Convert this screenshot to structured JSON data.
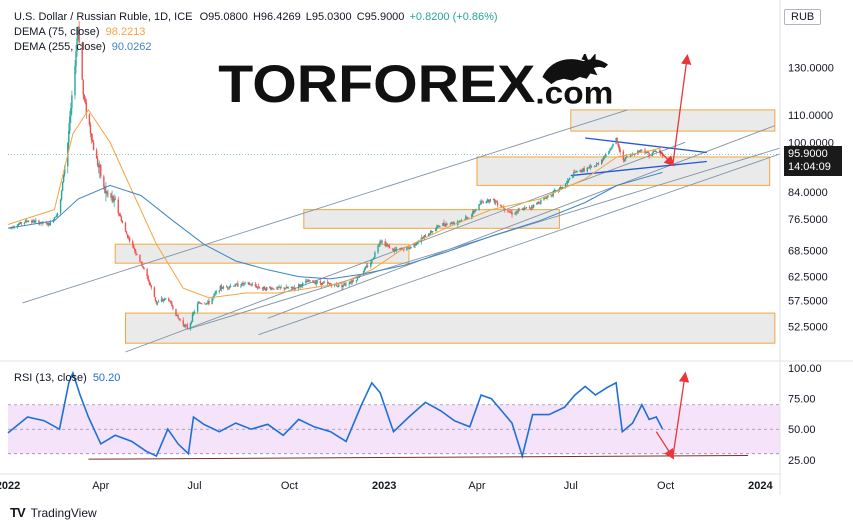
{
  "header": {
    "symbol": "U.S. Dollar / Russian Ruble, 1D, ICE",
    "open_label": "O",
    "open": "95.0800",
    "high_label": "H",
    "high": "96.4269",
    "low_label": "L",
    "low": "95.0300",
    "close_label": "C",
    "close": "95.9000",
    "change": "+0.8200 (+0.86%)",
    "dema75_label": "DEMA (75, close)",
    "dema75_value": "98.2213",
    "dema255_label": "DEMA (255, close)",
    "dema255_value": "90.0262",
    "currency": "RUB"
  },
  "watermark": {
    "brand_a": "TORFOREX",
    "brand_b": ".com"
  },
  "price_badge": {
    "price": "95.9000",
    "countdown": "14:04:09"
  },
  "rsi_label": "RSI (13, close)",
  "rsi_value": "50.20",
  "footer": {
    "brand": "TradingView"
  },
  "colors": {
    "up": "#26a69a",
    "down": "#ef5350",
    "dema75": "#f5a442",
    "dema255": "#3d85c6",
    "rsi": "#1e6fd9",
    "rsi_band": "#efd7f7",
    "zone_fill": "#e6e6e6",
    "zone_border": "#f0a63a",
    "arrow": "#e8363a",
    "trend_blue": "#2457d6"
  },
  "chart_data": [
    {
      "type": "candlestick",
      "title": "U.S. Dollar / Russian Ruble, 1D, ICE",
      "ylim": [
        47,
        160
      ],
      "y_scale": "log",
      "y_ticks": [
        "130.0000",
        "110.0000",
        "100.0000",
        "84.0000",
        "76.5000",
        "68.5000",
        "62.5000",
        "57.5000",
        "52.5000"
      ],
      "x_ticks": [
        "2022",
        "Apr",
        "Jul",
        "Oct",
        "2023",
        "Apr",
        "Jul",
        "Oct",
        "2024"
      ],
      "x_range": [
        "2022-01-01",
        "2024-01-20"
      ],
      "last_price": 95.9,
      "series": [
        {
          "name": "DEMA (75, close)",
          "color": "#f5a442",
          "points": [
            [
              "2022-01-01",
              75
            ],
            [
              "2022-02-15",
              79
            ],
            [
              "2022-03-05",
              103
            ],
            [
              "2022-03-20",
              112
            ],
            [
              "2022-04-10",
              100
            ],
            [
              "2022-05-05",
              82
            ],
            [
              "2022-05-25",
              70
            ],
            [
              "2022-06-20",
              60
            ],
            [
              "2022-07-15",
              58
            ],
            [
              "2022-08-20",
              59
            ],
            [
              "2022-09-20",
              59
            ],
            [
              "2022-10-20",
              60
            ],
            [
              "2022-11-20",
              61
            ],
            [
              "2022-12-20",
              64
            ],
            [
              "2023-01-20",
              69
            ],
            [
              "2023-03-01",
              74
            ],
            [
              "2023-04-15",
              79
            ],
            [
              "2023-06-01",
              82
            ],
            [
              "2023-07-15",
              88
            ],
            [
              "2023-08-15",
              95
            ],
            [
              "2023-09-15",
              97
            ],
            [
              "2023-09-28",
              98.2
            ]
          ]
        },
        {
          "name": "DEMA (255, close)",
          "color": "#3d85c6",
          "points": [
            [
              "2022-01-01",
              74
            ],
            [
              "2022-02-15",
              76
            ],
            [
              "2022-03-10",
              82
            ],
            [
              "2022-04-10",
              86
            ],
            [
              "2022-05-10",
              83
            ],
            [
              "2022-06-10",
              76
            ],
            [
              "2022-07-10",
              70
            ],
            [
              "2022-08-10",
              66
            ],
            [
              "2022-09-10",
              64
            ],
            [
              "2022-10-10",
              62.5
            ],
            [
              "2022-11-10",
              62
            ],
            [
              "2022-12-10",
              63
            ],
            [
              "2023-01-20",
              65
            ],
            [
              "2023-03-01",
              68
            ],
            [
              "2023-04-15",
              72
            ],
            [
              "2023-06-01",
              76
            ],
            [
              "2023-07-15",
              81
            ],
            [
              "2023-08-15",
              86
            ],
            [
              "2023-09-28",
              90
            ]
          ]
        },
        {
          "name": "Close",
          "color": "#26a69a",
          "points": [
            [
              "2022-01-01",
              74
            ],
            [
              "2022-01-20",
              76
            ],
            [
              "2022-02-10",
              75
            ],
            [
              "2022-02-20",
              79
            ],
            [
              "2022-02-28",
              100
            ],
            [
              "2022-03-05",
              120
            ],
            [
              "2022-03-10",
              150
            ],
            [
              "2022-03-15",
              118
            ],
            [
              "2022-03-25",
              98
            ],
            [
              "2022-04-05",
              84
            ],
            [
              "2022-04-15",
              81
            ],
            [
              "2022-04-25",
              73
            ],
            [
              "2022-05-05",
              68
            ],
            [
              "2022-05-15",
              63
            ],
            [
              "2022-05-25",
              57
            ],
            [
              "2022-06-05",
              58
            ],
            [
              "2022-06-15",
              54
            ],
            [
              "2022-06-25",
              52
            ],
            [
              "2022-06-30",
              55
            ],
            [
              "2022-07-05",
              57
            ],
            [
              "2022-07-15",
              57
            ],
            [
              "2022-07-25",
              60
            ],
            [
              "2022-08-05",
              60.5
            ],
            [
              "2022-08-20",
              61
            ],
            [
              "2022-09-05",
              60
            ],
            [
              "2022-09-20",
              60
            ],
            [
              "2022-10-05",
              60
            ],
            [
              "2022-10-20",
              61.5
            ],
            [
              "2022-11-05",
              61
            ],
            [
              "2022-11-20",
              60.5
            ],
            [
              "2022-12-05",
              62
            ],
            [
              "2022-12-20",
              66
            ],
            [
              "2022-12-28",
              71
            ],
            [
              "2023-01-10",
              68.5
            ],
            [
              "2023-01-25",
              69
            ],
            [
              "2023-02-10",
              72
            ],
            [
              "2023-02-25",
              75
            ],
            [
              "2023-03-10",
              75.5
            ],
            [
              "2023-03-25",
              77
            ],
            [
              "2023-04-05",
              81
            ],
            [
              "2023-04-15",
              82
            ],
            [
              "2023-04-25",
              80
            ],
            [
              "2023-05-05",
              78
            ],
            [
              "2023-05-15",
              79
            ],
            [
              "2023-05-25",
              80
            ],
            [
              "2023-06-10",
              83
            ],
            [
              "2023-06-25",
              86
            ],
            [
              "2023-07-05",
              90
            ],
            [
              "2023-07-15",
              91
            ],
            [
              "2023-07-25",
              92
            ],
            [
              "2023-08-05",
              96
            ],
            [
              "2023-08-14",
              101
            ],
            [
              "2023-08-20",
              94
            ],
            [
              "2023-08-30",
              96
            ],
            [
              "2023-09-08",
              97.5
            ],
            [
              "2023-09-15",
              96
            ],
            [
              "2023-09-22",
              97
            ],
            [
              "2023-09-28",
              95.9
            ]
          ]
        }
      ],
      "zones": [
        {
          "from": "2023-07-01",
          "to": "2024-01-15",
          "low": 104,
          "high": 112
        },
        {
          "from": "2023-04-01",
          "to": "2024-01-10",
          "low": 86,
          "high": 95
        },
        {
          "from": "2022-10-15",
          "to": "2023-06-20",
          "low": 74,
          "high": 79
        },
        {
          "from": "2022-04-15",
          "to": "2023-01-25",
          "low": 65.5,
          "high": 70
        },
        {
          "from": "2022-04-25",
          "to": "2024-01-15",
          "low": 49.5,
          "high": 55
        }
      ]
    },
    {
      "type": "line",
      "title": "RSI (13, close)",
      "ylim": [
        15,
        105
      ],
      "y_ticks": [
        "100.00",
        "75.00",
        "50.00",
        "25.00"
      ],
      "band": [
        30,
        70
      ],
      "last_value": 50.2,
      "series": [
        {
          "name": "RSI (13, close)",
          "color": "#1e6fd9",
          "points": [
            [
              "2022-01-01",
              47
            ],
            [
              "2022-01-20",
              60
            ],
            [
              "2022-02-05",
              57
            ],
            [
              "2022-02-20",
              50
            ],
            [
              "2022-03-01",
              88
            ],
            [
              "2022-03-05",
              96
            ],
            [
              "2022-03-12",
              78
            ],
            [
              "2022-03-20",
              60
            ],
            [
              "2022-04-01",
              38
            ],
            [
              "2022-04-15",
              45
            ],
            [
              "2022-05-01",
              40
            ],
            [
              "2022-05-15",
              32
            ],
            [
              "2022-05-25",
              28
            ],
            [
              "2022-06-05",
              50
            ],
            [
              "2022-06-15",
              38
            ],
            [
              "2022-06-25",
              30
            ],
            [
              "2022-06-30",
              60
            ],
            [
              "2022-07-10",
              54
            ],
            [
              "2022-07-25",
              48
            ],
            [
              "2022-08-10",
              55
            ],
            [
              "2022-08-25",
              50
            ],
            [
              "2022-09-10",
              54
            ],
            [
              "2022-09-25",
              45
            ],
            [
              "2022-10-10",
              58
            ],
            [
              "2022-10-25",
              52
            ],
            [
              "2022-11-10",
              48
            ],
            [
              "2022-11-25",
              40
            ],
            [
              "2022-12-10",
              70
            ],
            [
              "2022-12-20",
              88
            ],
            [
              "2022-12-28",
              80
            ],
            [
              "2023-01-10",
              48
            ],
            [
              "2023-01-25",
              60
            ],
            [
              "2023-02-10",
              72
            ],
            [
              "2023-02-25",
              65
            ],
            [
              "2023-03-10",
              57
            ],
            [
              "2023-03-25",
              52
            ],
            [
              "2023-04-05",
              78
            ],
            [
              "2023-04-15",
              75
            ],
            [
              "2023-04-25",
              65
            ],
            [
              "2023-05-05",
              55
            ],
            [
              "2023-05-15",
              28
            ],
            [
              "2023-05-25",
              62
            ],
            [
              "2023-06-10",
              62
            ],
            [
              "2023-06-25",
              68
            ],
            [
              "2023-07-05",
              78
            ],
            [
              "2023-07-15",
              85
            ],
            [
              "2023-07-25",
              78
            ],
            [
              "2023-08-05",
              84
            ],
            [
              "2023-08-14",
              88
            ],
            [
              "2023-08-20",
              48
            ],
            [
              "2023-08-30",
              55
            ],
            [
              "2023-09-08",
              70
            ],
            [
              "2023-09-15",
              58
            ],
            [
              "2023-09-22",
              60
            ],
            [
              "2023-09-28",
              50.2
            ]
          ]
        }
      ]
    }
  ]
}
